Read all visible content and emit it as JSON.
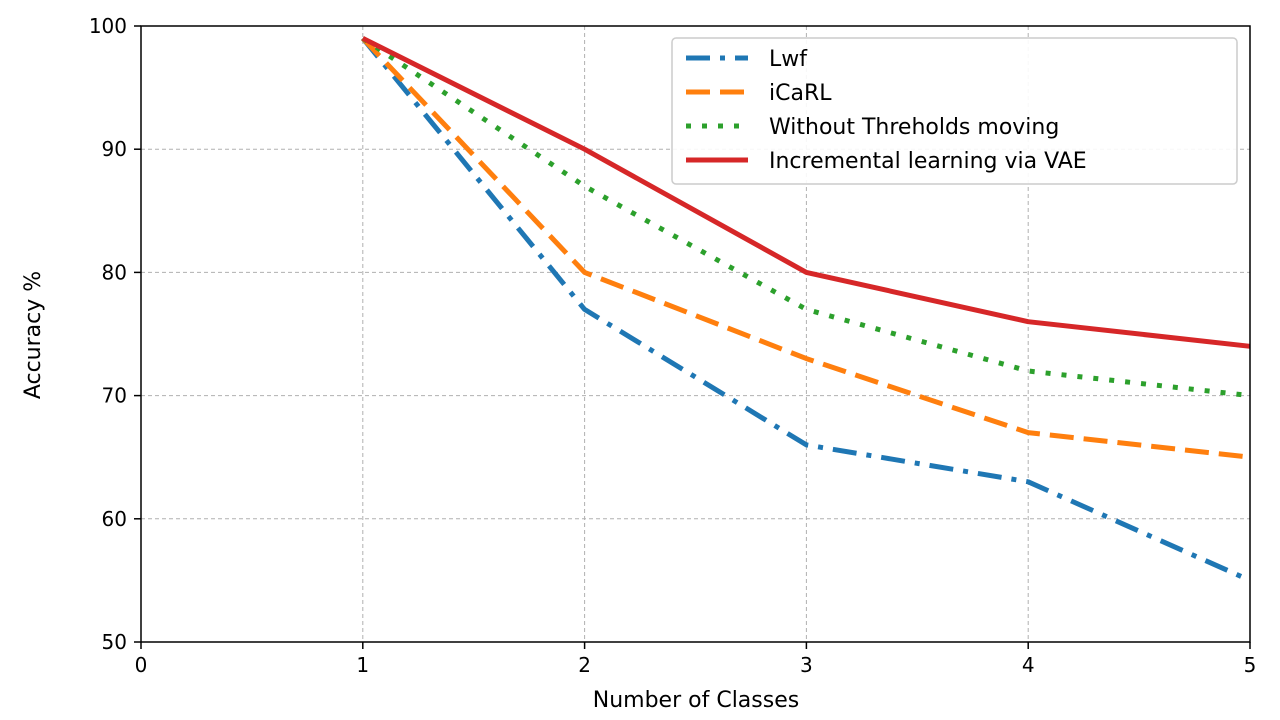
{
  "chart_data": {
    "type": "line",
    "title": "",
    "xlabel": "Number of Classes",
    "ylabel": "Accuracy %",
    "xlim": [
      0,
      5
    ],
    "ylim": [
      50,
      100
    ],
    "xticks": [
      "0",
      "1",
      "2",
      "3",
      "4",
      "5"
    ],
    "yticks": [
      "50",
      "60",
      "70",
      "80",
      "90",
      "100"
    ],
    "grid": true,
    "legend": "top-right",
    "x": [
      1,
      2,
      3,
      4,
      5
    ],
    "series": [
      {
        "name": "Lwf",
        "values": [
          99,
          77,
          66,
          63,
          55
        ],
        "color": "#1f77b4",
        "style": "dashdot"
      },
      {
        "name": "iCaRL",
        "values": [
          99,
          80,
          73,
          67,
          65
        ],
        "color": "#ff7f0e",
        "style": "dashed"
      },
      {
        "name": "Without Threholds moving",
        "values": [
          99,
          87,
          77,
          72,
          70
        ],
        "color": "#2ca02c",
        "style": "dotted"
      },
      {
        "name": "Incremental learning via VAE",
        "values": [
          99,
          90,
          80,
          76,
          74
        ],
        "color": "#d62728",
        "style": "solid"
      }
    ]
  }
}
